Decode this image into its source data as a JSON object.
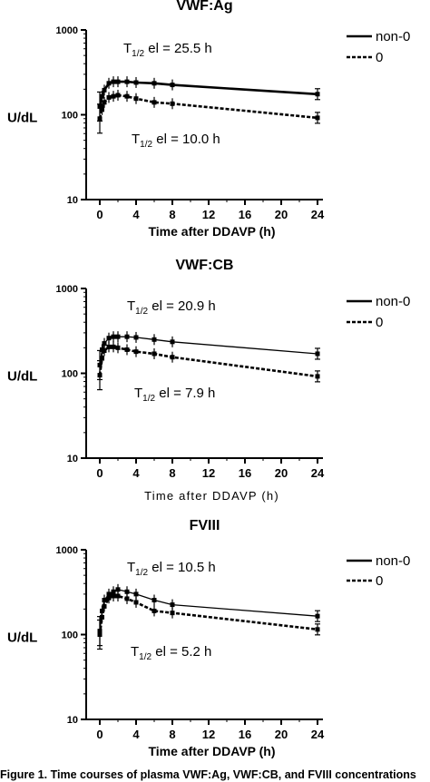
{
  "caption": "Figure 1. Time courses of plasma VWF:Ag, VWF:CB, and FVIII concentrations",
  "chart_data": [
    {
      "type": "line",
      "title": "VWF:Ag",
      "xlabel": "Time after DDAVP (h)",
      "ylabel": "U/dL",
      "yscale": "log",
      "ylim": [
        10,
        1000
      ],
      "yticks": [
        "10",
        "100",
        "1000"
      ],
      "xlim": [
        -2,
        25
      ],
      "xticks": [
        "0",
        "4",
        "8",
        "12",
        "16",
        "20",
        "24"
      ],
      "legend": "top-right",
      "series": [
        {
          "name": "non-0",
          "style": "solid",
          "x": [
            0,
            0.25,
            0.5,
            1,
            1.5,
            2,
            3,
            4,
            6,
            8,
            24
          ],
          "y": [
            125,
            165,
            195,
            235,
            245,
            245,
            245,
            240,
            235,
            225,
            175
          ]
        },
        {
          "name": "0",
          "style": "dashed",
          "x": [
            0,
            0.25,
            0.5,
            1,
            1.5,
            2,
            3,
            4,
            6,
            8,
            24
          ],
          "y": [
            90,
            115,
            140,
            160,
            165,
            170,
            165,
            155,
            140,
            135,
            92
          ]
        }
      ],
      "annotations": [
        {
          "main": "T",
          "sub": "1/2",
          "rest": " el = 25.5 h"
        },
        {
          "main": "T",
          "sub": "1/2",
          "rest": " el = 10.0 h"
        }
      ]
    },
    {
      "type": "line",
      "title": "VWF:CB",
      "xlabel": "Time after DDAVP (h)",
      "ylabel": "U/dL",
      "yscale": "log",
      "ylim": [
        10,
        1000
      ],
      "yticks": [
        "10",
        "100",
        "1000"
      ],
      "xlim": [
        -2,
        25
      ],
      "xticks": [
        "0",
        "4",
        "8",
        "12",
        "16",
        "20",
        "24"
      ],
      "legend": "top-right",
      "series": [
        {
          "name": "non-0",
          "style": "solid",
          "x": [
            0,
            0.25,
            0.5,
            1,
            1.5,
            2,
            3,
            4,
            6,
            8,
            24
          ],
          "y": [
            125,
            190,
            225,
            260,
            270,
            270,
            270,
            265,
            250,
            235,
            170
          ]
        },
        {
          "name": "0",
          "style": "dashed",
          "x": [
            0,
            0.25,
            0.5,
            1,
            1.5,
            2,
            3,
            4,
            6,
            8,
            24
          ],
          "y": [
            95,
            150,
            185,
            205,
            205,
            200,
            190,
            180,
            170,
            155,
            92
          ]
        }
      ],
      "annotations": [
        {
          "main": "T",
          "sub": "1/2",
          "rest": " el = 20.9 h"
        },
        {
          "main": "T",
          "sub": "1/2",
          "rest": " el = 7.9 h"
        }
      ]
    },
    {
      "type": "line",
      "title": "FVIII",
      "xlabel": "Time after DDAVP (h)",
      "ylabel": "U/dL",
      "yscale": "log",
      "ylim": [
        10,
        1000
      ],
      "yticks": [
        "10",
        "100",
        "1000"
      ],
      "xlim": [
        -2,
        25
      ],
      "xticks": [
        "0",
        "4",
        "8",
        "12",
        "16",
        "20",
        "24"
      ],
      "legend": "top-right",
      "series": [
        {
          "name": "non-0",
          "style": "solid",
          "x": [
            0,
            0.25,
            0.5,
            1,
            1.5,
            2,
            3,
            4,
            6,
            8,
            24
          ],
          "y": [
            110,
            190,
            255,
            300,
            320,
            340,
            320,
            300,
            255,
            225,
            165
          ]
        },
        {
          "name": "0",
          "style": "dashed",
          "x": [
            0,
            0.25,
            0.5,
            1,
            1.5,
            2,
            3,
            4,
            6,
            8,
            24
          ],
          "y": [
            100,
            160,
            215,
            270,
            285,
            285,
            265,
            240,
            190,
            180,
            115
          ]
        }
      ],
      "annotations": [
        {
          "main": "T",
          "sub": "1/2",
          "rest": " el = 10.5 h"
        },
        {
          "main": "T",
          "sub": "1/2",
          "rest": " el = 5.2 h"
        }
      ]
    }
  ]
}
